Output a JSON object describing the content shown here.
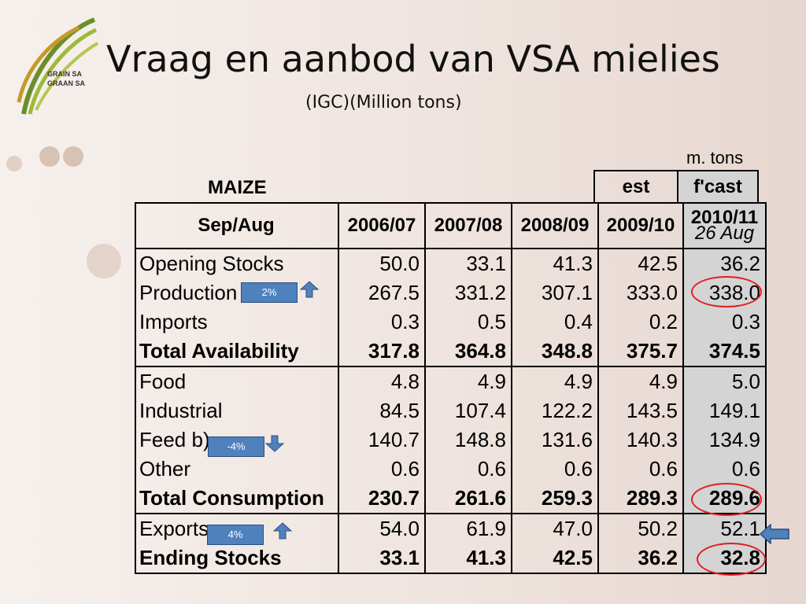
{
  "logo": {
    "line1": "GRAIN SA",
    "line2": "GRAAN SA"
  },
  "title": "Vraag en aanbod van VSA mielies",
  "subtitle": "(IGC)(Million tons)",
  "units": "m. tons",
  "table": {
    "label": "MAIZE",
    "est_label": "est",
    "fcast_label": "f'cast",
    "columns": [
      "Sep/Aug",
      "2006/07",
      "2007/08",
      "2008/09",
      "2009/10"
    ],
    "last_col_line1": "2010/11",
    "last_col_line2": "26 Aug",
    "rows": [
      {
        "label": "Opening Stocks",
        "values": [
          "50.0",
          "33.1",
          "41.3",
          "42.5",
          "36.2"
        ]
      },
      {
        "label": "Production",
        "values": [
          "267.5",
          "331.2",
          "307.1",
          "333.0",
          "338.0"
        ]
      },
      {
        "label": "Imports",
        "values": [
          "0.3",
          "0.5",
          "0.4",
          "0.2",
          "0.3"
        ]
      },
      {
        "label": "Total Availability",
        "values": [
          "317.8",
          "364.8",
          "348.8",
          "375.7",
          "374.5"
        ]
      },
      {
        "label": "Food",
        "values": [
          "4.8",
          "4.9",
          "4.9",
          "4.9",
          "5.0"
        ]
      },
      {
        "label": "Industrial",
        "values": [
          "84.5",
          "107.4",
          "122.2",
          "143.5",
          "149.1"
        ]
      },
      {
        "label": "Feed b)",
        "values": [
          "140.7",
          "148.8",
          "131.6",
          "140.3",
          "134.9"
        ]
      },
      {
        "label": "Other",
        "values": [
          "0.6",
          "0.6",
          "0.6",
          "0.6",
          "0.6"
        ]
      },
      {
        "label": "Total Consumption",
        "values": [
          "230.7",
          "261.6",
          "259.3",
          "289.3",
          "289.6"
        ]
      },
      {
        "label": "Exports",
        "values": [
          "54.0",
          "61.9",
          "47.0",
          "50.2",
          "52.1"
        ]
      },
      {
        "label": "Ending Stocks",
        "values": [
          "33.1",
          "41.3",
          "42.5",
          "36.2",
          "32.8"
        ]
      }
    ]
  },
  "badges": {
    "production": "2%",
    "feed": "-4%",
    "exports": "4%"
  },
  "colors": {
    "badge": "#4f81bd",
    "ring": "#e02020",
    "shade": "#d4d4d4"
  }
}
